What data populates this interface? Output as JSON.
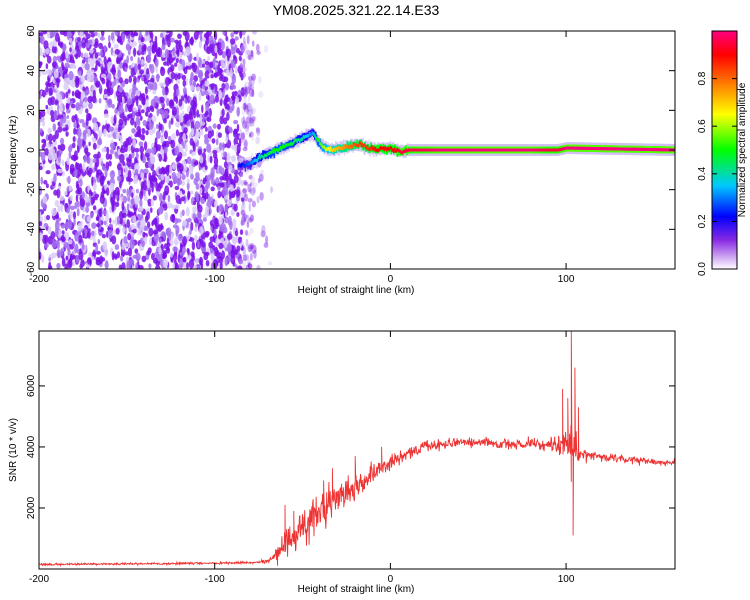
{
  "title": "YM08.2025.321.22.14.E33",
  "chart_data": [
    {
      "type": "heatmap",
      "xlabel": "Height of straight line (km)",
      "ylabel": "Frequency (Hz)",
      "xlim": [
        -200,
        162
      ],
      "ylim": [
        -60,
        60
      ],
      "xticks": [
        "-200",
        "-100",
        "0",
        "100"
      ],
      "yticks": [
        "60",
        "40",
        "20",
        "0",
        "-20",
        "-40",
        "-60"
      ],
      "colorbar": {
        "label": "Normalized spectral amplitude",
        "range": [
          0,
          1
        ],
        "ticks": [
          "0.0",
          "0.2",
          "0.4",
          "0.6",
          "0.8"
        ]
      },
      "noise_region": {
        "x": [
          -200,
          -78
        ],
        "y": [
          -60,
          60
        ]
      },
      "track": {
        "x": [
          -87,
          -80,
          -75,
          -70,
          -65,
          -60,
          -55,
          -50,
          -45,
          -42,
          -38,
          -33,
          -28,
          -23,
          -18,
          -13,
          -8,
          -3,
          2,
          6,
          10,
          30,
          60,
          80,
          90,
          95,
          100,
          162
        ],
        "f": [
          -8,
          -7,
          -4,
          -2,
          0,
          2,
          4,
          6,
          9,
          5,
          1,
          0,
          1,
          2,
          3,
          1,
          0,
          1,
          0,
          -1,
          0,
          0,
          0,
          0,
          0,
          0,
          1,
          0
        ],
        "amp": [
          0.2,
          0.3,
          0.4,
          0.45,
          0.5,
          0.5,
          0.45,
          0.4,
          0.3,
          0.5,
          0.6,
          0.7,
          0.75,
          0.8,
          0.85,
          0.85,
          0.9,
          0.9,
          0.9,
          0.95,
          0.95,
          1.0,
          1.0,
          1.0,
          0.95,
          0.95,
          1.0,
          1.0
        ]
      }
    },
    {
      "type": "line",
      "xlabel": "Height of straight line (km)",
      "ylabel": "SNR (10 * v/v)",
      "xlim": [
        -200,
        162
      ],
      "ylim": [
        0,
        7800
      ],
      "xticks": [
        "-200",
        "-100",
        "0",
        "100"
      ],
      "yticks": [
        "2000",
        "4000",
        "6000"
      ],
      "series": [
        {
          "color": "#ee3333",
          "x": [
            -200,
            -150,
            -100,
            -75,
            -68,
            -62,
            -58,
            -55,
            -50,
            -45,
            -40,
            -35,
            -30,
            -25,
            -20,
            -15,
            -10,
            -5,
            0,
            5,
            10,
            20,
            30,
            40,
            50,
            60,
            70,
            80,
            90,
            95,
            100,
            103,
            105,
            108,
            112,
            120,
            130,
            140,
            150,
            162
          ],
          "y": [
            150,
            170,
            190,
            220,
            300,
            600,
            900,
            1100,
            1400,
            1600,
            1800,
            2100,
            2300,
            2500,
            2700,
            2900,
            3100,
            3300,
            3500,
            3650,
            3800,
            4000,
            4100,
            4150,
            4150,
            4100,
            4100,
            4100,
            4050,
            4100,
            4100,
            4000,
            3800,
            3800,
            3750,
            3650,
            3600,
            3550,
            3500,
            3500
          ],
          "spread": [
            60,
            60,
            60,
            60,
            150,
            800,
            1000,
            900,
            900,
            1000,
            1100,
            1100,
            1000,
            900,
            800,
            700,
            600,
            500,
            400,
            350,
            300,
            300,
            250,
            250,
            250,
            250,
            300,
            300,
            350,
            500,
            1000,
            1800,
            1200,
            500,
            300,
            250,
            200,
            200,
            200,
            200
          ]
        }
      ],
      "spikes": [
        [
          -60,
          2100
        ],
        [
          -55,
          1900
        ],
        [
          -38,
          2900
        ],
        [
          -33,
          3300
        ],
        [
          -20,
          3700
        ],
        [
          -5,
          4000
        ],
        [
          98,
          5900
        ],
        [
          101,
          5600
        ],
        [
          103,
          7800
        ],
        [
          104,
          1100
        ],
        [
          105,
          6600
        ],
        [
          107,
          5300
        ]
      ]
    }
  ]
}
